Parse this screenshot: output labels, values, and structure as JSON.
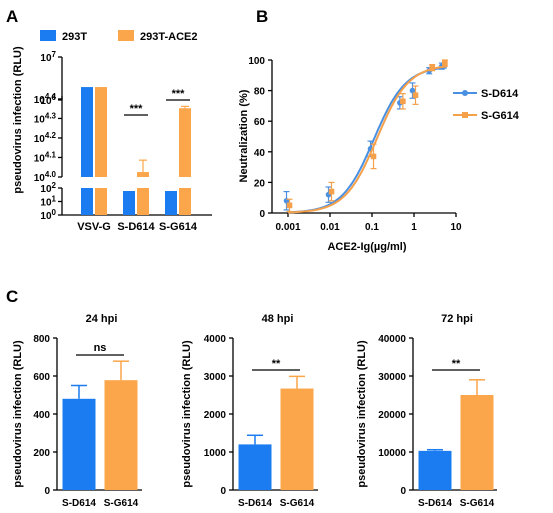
{
  "panels": {
    "a": "A",
    "b": "B",
    "c": "C"
  },
  "colors": {
    "blue": "#1a7cf0",
    "orange": "#fba64a"
  },
  "chart_data": [
    {
      "type": "bar",
      "panel": "A",
      "ylabel": "pseudovirus infection (RLU)",
      "yscale": "log-broken",
      "categories": [
        "VSV-G",
        "S-D614",
        "S-G614"
      ],
      "legend": [
        "293T",
        "293T-ACE2"
      ],
      "series": [
        {
          "name": "293T",
          "color": "#1a7cf0",
          "values": [
            2000000,
            60,
            60
          ]
        },
        {
          "name": "293T-ACE2",
          "color": "#fba64a",
          "values": [
            2000000,
            10600,
            22500
          ]
        }
      ],
      "errors_up": {
        "293T-ACE2": [
          null,
          12200,
          23000
        ]
      },
      "segments": [
        {
          "range": [
            1000000,
            10000000
          ],
          "ticks": [
            {
              "label": "10",
              "sup": "6"
            },
            {
              "label": "10",
              "sup": "7"
            }
          ]
        },
        {
          "range": [
            10000,
            26000
          ],
          "ticks": [
            {
              "label": "10",
              "sup": "4.0"
            },
            {
              "label": "10",
              "sup": "4.1"
            },
            {
              "label": "10",
              "sup": "4.2"
            },
            {
              "label": "10",
              "sup": "4.3"
            },
            {
              "label": "10",
              "sup": "4.4"
            }
          ]
        },
        {
          "range": [
            1,
            100
          ],
          "ticks": [
            {
              "label": "10",
              "sup": "0"
            },
            {
              "label": "10",
              "sup": "1"
            },
            {
              "label": "10",
              "sup": "2"
            }
          ]
        }
      ],
      "annotations": [
        {
          "between": "S-D614",
          "text": "***"
        },
        {
          "between": "S-G614",
          "text": "***"
        }
      ]
    },
    {
      "type": "line",
      "panel": "B",
      "xlabel": "ACE2-Ig(µg/ml)",
      "ylabel": "Neutralization (%)",
      "xscale": "log",
      "xlim": [
        0.001,
        10
      ],
      "ylim": [
        0,
        100
      ],
      "xticks": [
        "0.001",
        "0.01",
        "0.1",
        "1",
        "10"
      ],
      "yticks": [
        "0",
        "20",
        "40",
        "60",
        "80",
        "100"
      ],
      "legend": [
        "S-D614",
        "S-G614"
      ],
      "series": [
        {
          "name": "S-D614",
          "color": "#4a90e2",
          "x": [
            0.001,
            0.01,
            0.1,
            0.5,
            1,
            2.5,
            5
          ],
          "y": [
            8,
            12,
            42,
            72,
            80,
            93,
            96
          ],
          "err": [
            6,
            5,
            5,
            4,
            5,
            2,
            2
          ],
          "fit": {
            "top": 96,
            "ec50": 0.11,
            "hill": 1.15
          }
        },
        {
          "name": "S-G614",
          "color": "#f5a04a",
          "x": [
            0.001,
            0.01,
            0.1,
            0.5,
            1,
            2.5,
            5
          ],
          "y": [
            5,
            14,
            37,
            73,
            77,
            95,
            98
          ],
          "err": [
            4,
            6,
            8,
            5,
            6,
            2,
            2
          ],
          "fit": {
            "top": 97,
            "ec50": 0.13,
            "hill": 1.15
          }
        }
      ]
    },
    {
      "type": "bar",
      "panel": "C",
      "title": "24 hpi",
      "ylabel": "pseudovirus infection (RLU)",
      "categories": [
        "S-D614",
        "S-G614"
      ],
      "values": [
        480,
        578
      ],
      "errors": [
        70,
        100
      ],
      "colors": [
        "#1a7cf0",
        "#fba64a"
      ],
      "ylim": [
        0,
        800
      ],
      "yticks": [
        "0",
        "200",
        "400",
        "600",
        "800"
      ],
      "annotation": "ns"
    },
    {
      "type": "bar",
      "panel": "C",
      "title": "48 hpi",
      "ylabel": "pseudovirus infection (RLU)",
      "categories": [
        "S-D614",
        "S-G614"
      ],
      "values": [
        1200,
        2670
      ],
      "errors": [
        240,
        320
      ],
      "colors": [
        "#1a7cf0",
        "#fba64a"
      ],
      "ylim": [
        0,
        4000
      ],
      "yticks": [
        "0",
        "1000",
        "2000",
        "3000",
        "4000"
      ],
      "annotation": "**"
    },
    {
      "type": "bar",
      "panel": "C",
      "title": "72 hpi",
      "ylabel": "pseudovirus infection (RLU)",
      "categories": [
        "S-D614",
        "S-G614"
      ],
      "values": [
        10300,
        25000
      ],
      "errors": [
        300,
        4000
      ],
      "colors": [
        "#1a7cf0",
        "#fba64a"
      ],
      "ylim": [
        0,
        40000
      ],
      "yticks": [
        "0",
        "10000",
        "20000",
        "30000",
        "40000"
      ],
      "annotation": "**"
    }
  ]
}
